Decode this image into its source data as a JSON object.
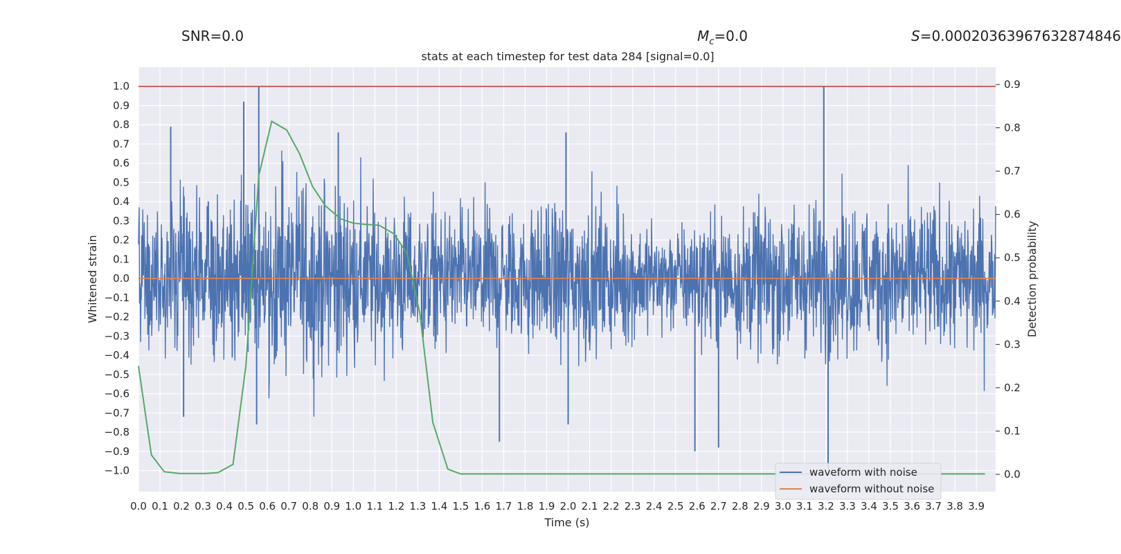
{
  "header": {
    "snr_label": "SNR=0.0",
    "mc_symbol": "M",
    "mc_sub": "c",
    "mc_value": "=0.0",
    "s_symbol": "S",
    "s_value": "=0.00020363967632874846"
  },
  "chart_data": {
    "type": "line",
    "title": "stats at each timestep for test data 284 [signal=0.0]",
    "xlabel": "Time (s)",
    "ylabel": "Whitened strain",
    "y2label": "Detection probability",
    "xlim": [
      0.0,
      3.99
    ],
    "ylim": [
      -1.11,
      1.1
    ],
    "y2lim": [
      -0.04,
      0.94
    ],
    "grid": true,
    "legend_position": "lower right",
    "x_ticks": [
      "0.0",
      "0.1",
      "0.2",
      "0.3",
      "0.4",
      "0.5",
      "0.6",
      "0.7",
      "0.8",
      "0.9",
      "1.0",
      "1.1",
      "1.2",
      "1.3",
      "1.4",
      "1.5",
      "1.6",
      "1.7",
      "1.8",
      "1.9",
      "2.0",
      "2.1",
      "2.2",
      "2.3",
      "2.4",
      "2.5",
      "2.6",
      "2.7",
      "2.8",
      "2.9",
      "3.0",
      "3.1",
      "3.2",
      "3.3",
      "3.4",
      "3.5",
      "3.6",
      "3.7",
      "3.8",
      "3.9"
    ],
    "y_ticks": [
      "1.0",
      "0.9",
      "0.8",
      "0.7",
      "0.6",
      "0.5",
      "0.4",
      "0.3",
      "0.2",
      "0.1",
      "0.0",
      "−0.1",
      "−0.2",
      "−0.3",
      "−0.4",
      "−0.5",
      "−0.6",
      "−0.7",
      "−0.8",
      "−0.9",
      "−1.0"
    ],
    "y2_ticks": [
      "0.9",
      "0.8",
      "0.7",
      "0.6",
      "0.5",
      "0.4",
      "0.3",
      "0.2",
      "0.1",
      "0.0"
    ],
    "series": [
      {
        "name": "waveform with noise",
        "color": "#4c72b0",
        "approx_amplitude_profile": {
          "t": [
            0.0,
            0.3,
            0.55,
            0.6,
            0.9,
            1.3,
            1.5,
            1.8,
            2.0,
            2.3,
            2.5,
            2.7,
            3.0,
            3.2,
            3.5,
            3.99
          ],
          "amp": [
            0.33,
            0.35,
            0.42,
            0.42,
            0.4,
            0.34,
            0.3,
            0.3,
            0.36,
            0.28,
            0.23,
            0.3,
            0.33,
            0.32,
            0.34,
            0.32
          ]
        },
        "spikes": [
          {
            "t": 0.15,
            "value": 0.79
          },
          {
            "t": 0.21,
            "value": -0.72
          },
          {
            "t": 0.49,
            "value": 0.92
          },
          {
            "t": 0.56,
            "value": 1.0
          },
          {
            "t": 0.55,
            "value": -0.76
          },
          {
            "t": 0.93,
            "value": 0.76
          },
          {
            "t": 1.99,
            "value": 0.76
          },
          {
            "t": 2.0,
            "value": -0.76
          },
          {
            "t": 2.59,
            "value": -0.9
          },
          {
            "t": 2.7,
            "value": -0.88
          },
          {
            "t": 3.19,
            "value": 1.0
          },
          {
            "t": 3.21,
            "value": -1.0
          },
          {
            "t": 1.68,
            "value": -0.85
          }
        ]
      },
      {
        "name": "waveform without noise",
        "color": "#dd8452",
        "x": [
          0.0,
          3.99
        ],
        "y": [
          0.0,
          0.0
        ]
      },
      {
        "name": "",
        "color": "#55a868",
        "axis": "right",
        "x": [
          0.0,
          0.06,
          0.12,
          0.19,
          0.25,
          0.31,
          0.37,
          0.44,
          0.5,
          0.56,
          0.62,
          0.69,
          0.75,
          0.81,
          0.87,
          0.94,
          1.0,
          1.06,
          1.12,
          1.19,
          1.25,
          1.31,
          1.37,
          1.44,
          1.5,
          1.56,
          1.62,
          1.69,
          1.75,
          1.81,
          1.87,
          1.94,
          2.0,
          2.5,
          3.0,
          3.5,
          3.94
        ],
        "y": [
          0.25,
          0.045,
          0.006,
          0.002,
          0.002,
          0.002,
          0.004,
          0.023,
          0.25,
          0.69,
          0.815,
          0.795,
          0.74,
          0.665,
          0.62,
          0.59,
          0.58,
          0.577,
          0.575,
          0.555,
          0.51,
          0.37,
          0.12,
          0.012,
          0.001,
          0.001,
          0.001,
          0.001,
          0.001,
          0.001,
          0.001,
          0.001,
          0.001,
          0.001,
          0.001,
          0.001,
          0.001
        ]
      },
      {
        "name": "",
        "color": "#c44e52",
        "x": [
          0.0,
          3.99
        ],
        "y": [
          1.0,
          1.0
        ]
      }
    ]
  }
}
